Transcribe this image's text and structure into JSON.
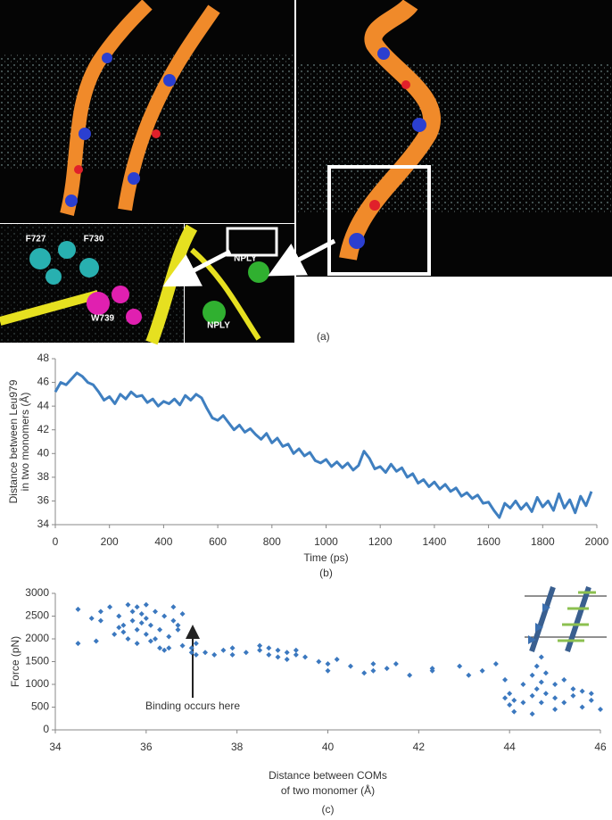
{
  "panel_a": {
    "label": "(a)",
    "annotations": [
      "F727",
      "F730",
      "W739",
      "NPLY",
      "NPLY"
    ]
  },
  "chart_data": [
    {
      "type": "line",
      "panel_label": "(b)",
      "xlabel": "Time (ps)",
      "ylabel": [
        "Distance between Leu979",
        "in two monomers (Å)"
      ],
      "x": [
        0,
        20,
        40,
        60,
        80,
        100,
        120,
        140,
        160,
        180,
        200,
        220,
        240,
        260,
        280,
        300,
        320,
        340,
        360,
        380,
        400,
        420,
        440,
        460,
        480,
        500,
        520,
        540,
        560,
        580,
        600,
        620,
        640,
        660,
        680,
        700,
        720,
        740,
        760,
        780,
        800,
        820,
        840,
        860,
        880,
        900,
        920,
        940,
        960,
        980,
        1000,
        1020,
        1040,
        1060,
        1080,
        1100,
        1120,
        1140,
        1160,
        1180,
        1200,
        1220,
        1240,
        1260,
        1280,
        1300,
        1320,
        1340,
        1360,
        1380,
        1400,
        1420,
        1440,
        1460,
        1480,
        1500,
        1520,
        1540,
        1560,
        1580,
        1600,
        1620,
        1640,
        1660,
        1680,
        1700,
        1720,
        1740,
        1760,
        1780,
        1800,
        1820,
        1840,
        1860,
        1880,
        1900,
        1920,
        1940,
        1960,
        1980
      ],
      "series": [
        {
          "name": "Distance",
          "color": "#3f7fc0",
          "values": [
            45.2,
            46.0,
            45.8,
            46.3,
            46.8,
            46.5,
            46.0,
            45.8,
            45.2,
            44.5,
            44.8,
            44.2,
            45.0,
            44.6,
            45.2,
            44.8,
            44.9,
            44.3,
            44.6,
            44.0,
            44.4,
            44.2,
            44.6,
            44.1,
            44.9,
            44.5,
            45.0,
            44.7,
            43.8,
            43.0,
            42.8,
            43.2,
            42.6,
            42.0,
            42.4,
            41.8,
            42.1,
            41.6,
            41.2,
            41.7,
            40.9,
            41.3,
            40.6,
            40.8,
            40.0,
            40.4,
            39.8,
            40.1,
            39.4,
            39.2,
            39.5,
            38.9,
            39.3,
            38.8,
            39.2,
            38.6,
            39.0,
            40.2,
            39.6,
            38.7,
            38.9,
            38.4,
            39.1,
            38.5,
            38.8,
            38.0,
            38.3,
            37.5,
            37.8,
            37.2,
            37.6,
            37.0,
            37.4,
            36.8,
            37.1,
            36.4,
            36.7,
            36.2,
            36.5,
            35.8,
            35.9,
            35.2,
            34.6,
            35.8,
            35.4,
            36.0,
            35.3,
            35.8,
            35.1,
            36.3,
            35.5,
            36.0,
            35.2,
            36.6,
            35.4,
            36.1,
            35.0,
            36.4,
            35.6,
            36.8
          ]
        }
      ],
      "xlim": [
        0,
        2000
      ],
      "xticks": [
        0,
        200,
        400,
        600,
        800,
        1000,
        1200,
        1400,
        1600,
        1800,
        2000
      ],
      "ylim": [
        34,
        48
      ],
      "yticks": [
        34,
        36,
        38,
        40,
        42,
        44,
        46,
        48
      ]
    },
    {
      "type": "scatter",
      "panel_label": "(c)",
      "xlabel": [
        "Distance between COMs",
        "of two monomer (Å)"
      ],
      "ylabel": "Force (pN)",
      "annotation": "Binding occurs here",
      "color": "#3b78bf",
      "x": [
        34.5,
        34.5,
        34.8,
        34.9,
        35.0,
        35.0,
        35.2,
        35.3,
        35.4,
        35.4,
        35.5,
        35.5,
        35.6,
        35.6,
        35.7,
        35.7,
        35.8,
        35.8,
        35.8,
        35.9,
        35.9,
        36.0,
        36.0,
        36.0,
        36.1,
        36.1,
        36.2,
        36.2,
        36.3,
        36.3,
        36.4,
        36.4,
        36.5,
        36.5,
        36.6,
        36.6,
        36.7,
        36.7,
        36.8,
        36.8,
        37.0,
        37.0,
        37.1,
        37.1,
        37.3,
        37.5,
        37.7,
        37.9,
        37.9,
        38.2,
        38.5,
        38.5,
        38.7,
        38.7,
        38.9,
        38.9,
        39.1,
        39.1,
        39.3,
        39.3,
        39.5,
        39.8,
        40.0,
        40.0,
        40.2,
        40.5,
        40.8,
        41.0,
        41.0,
        41.3,
        41.5,
        41.8,
        42.3,
        42.3,
        42.9,
        43.1,
        43.4,
        43.7,
        43.9,
        43.9,
        44.0,
        44.0,
        44.1,
        44.1,
        44.3,
        44.3,
        44.5,
        44.5,
        44.5,
        44.6,
        44.6,
        44.7,
        44.7,
        44.7,
        44.8,
        44.8,
        45.0,
        45.0,
        45.0,
        45.2,
        45.2,
        45.4,
        45.4,
        45.6,
        45.6,
        45.8,
        45.8,
        46.0
      ],
      "y": [
        2650,
        1900,
        2450,
        1950,
        2400,
        2600,
        2700,
        2100,
        2500,
        2250,
        2300,
        2150,
        2750,
        2000,
        2600,
        2400,
        2200,
        2700,
        1900,
        2350,
        2550,
        2450,
        2100,
        2750,
        2300,
        1950,
        2600,
        2000,
        2200,
        1800,
        2500,
        1750,
        2050,
        1800,
        2700,
        2400,
        2300,
        2200,
        2550,
        1850,
        1800,
        1700,
        1900,
        1650,
        1700,
        1650,
        1750,
        1800,
        1650,
        1700,
        1850,
        1750,
        1650,
        1800,
        1600,
        1750,
        1700,
        1550,
        1750,
        1650,
        1600,
        1500,
        1450,
        1300,
        1550,
        1400,
        1250,
        1300,
        1450,
        1350,
        1450,
        1200,
        1350,
        1300,
        1400,
        1200,
        1300,
        1450,
        1100,
        700,
        550,
        800,
        650,
        400,
        1000,
        600,
        1200,
        750,
        350,
        1400,
        900,
        1600,
        1050,
        600,
        800,
        1250,
        700,
        1000,
        450,
        1100,
        600,
        900,
        750,
        500,
        850,
        800,
        650,
        450
      ],
      "xlim": [
        34,
        46
      ],
      "xticks": [
        34,
        36,
        38,
        40,
        42,
        44,
        46
      ],
      "ylim": [
        0,
        3000
      ],
      "yticks": [
        0,
        500,
        1000,
        1500,
        2000,
        2500,
        3000
      ]
    }
  ]
}
